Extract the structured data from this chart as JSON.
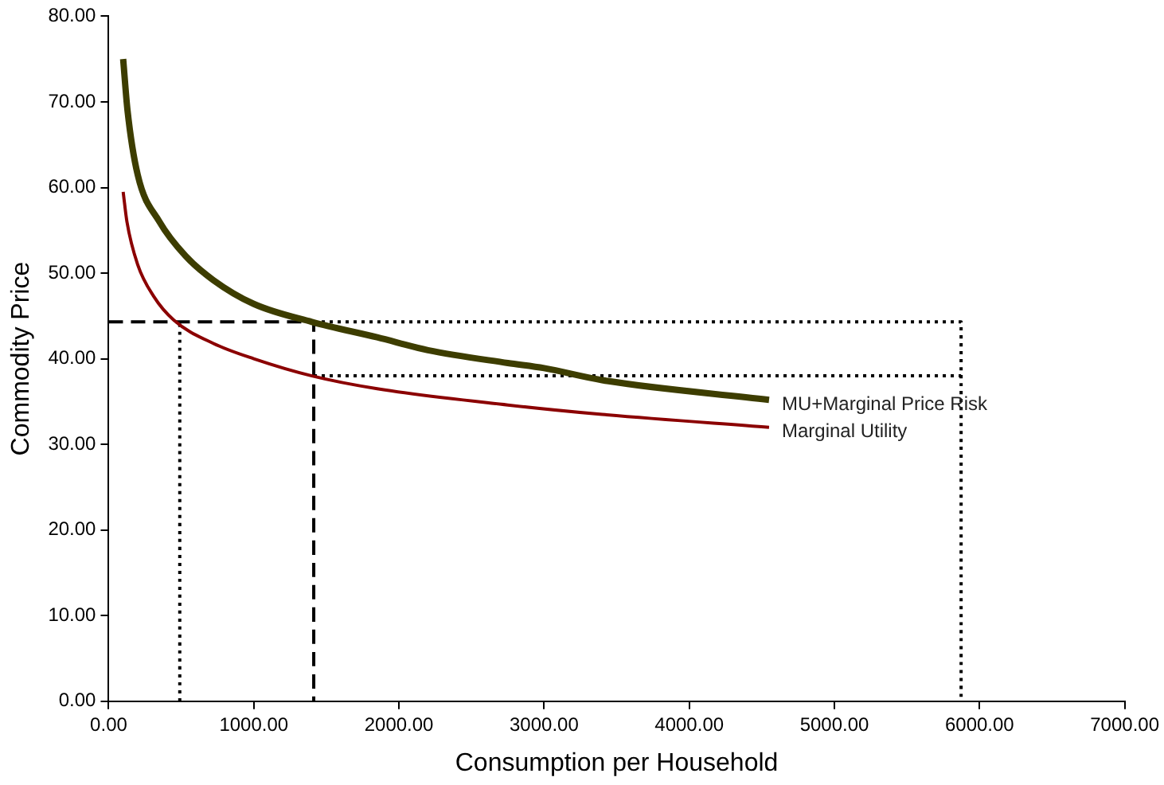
{
  "chart_data": {
    "type": "line",
    "xlabel": "Consumption per Household",
    "ylabel": "Commodity Price",
    "xlim": [
      0,
      7000
    ],
    "ylim": [
      0,
      80
    ],
    "xticks": [
      {
        "value": 0,
        "label": "0.00"
      },
      {
        "value": 1000,
        "label": "1000.00"
      },
      {
        "value": 2000,
        "label": "2000.00"
      },
      {
        "value": 3000,
        "label": "3000.00"
      },
      {
        "value": 4000,
        "label": "4000.00"
      },
      {
        "value": 5000,
        "label": "5000.00"
      },
      {
        "value": 6000,
        "label": "6000.00"
      },
      {
        "value": 7000,
        "label": "7000.00"
      }
    ],
    "yticks": [
      {
        "value": 0,
        "label": "0.00"
      },
      {
        "value": 10,
        "label": "10.00"
      },
      {
        "value": 20,
        "label": "20.00"
      },
      {
        "value": 30,
        "label": "30.00"
      },
      {
        "value": 40,
        "label": "40.00"
      },
      {
        "value": 50,
        "label": "50.00"
      },
      {
        "value": 60,
        "label": "60.00"
      },
      {
        "value": 70,
        "label": "70.00"
      },
      {
        "value": 80,
        "label": "80.00"
      }
    ],
    "grid": false,
    "legend": false,
    "marker": "none",
    "series": [
      {
        "name": "MU+Marginal Price Risk",
        "color": "#3d3d00",
        "x": [
          100,
          130,
          200,
          350,
          530,
          720,
          1000,
          1400,
          1850,
          2200,
          2750,
          3000,
          3400,
          4550
        ],
        "values": [
          75,
          69,
          61.5,
          56,
          52,
          49.2,
          46.4,
          44.3,
          42.5,
          41,
          39.5,
          38.9,
          37.5,
          35.2
        ]
      },
      {
        "name": "Marginal Utility",
        "color": "#8b0000",
        "x": [
          100,
          126,
          200,
          310,
          450,
          720,
          1000,
          1400,
          1850,
          2750,
          3400,
          4550
        ],
        "values": [
          59.5,
          56,
          51,
          47.3,
          44.5,
          41.8,
          40,
          38,
          36.5,
          34.6,
          33.5,
          32
        ]
      },
      {
        "color": "#000000",
        "line_style": "dashed",
        "x": [
          0,
          1413,
          1413
        ],
        "values": [
          44.3,
          44.3,
          0
        ]
      },
      {
        "color": "#000000",
        "line_style": "dotted",
        "x": [
          490,
          490
        ],
        "values": [
          0,
          44.3
        ]
      },
      {
        "color": "#000000",
        "line_style": "dotted",
        "x": [
          1413,
          5873,
          5873
        ],
        "values": [
          44.3,
          44.3,
          0
        ]
      },
      {
        "color": "#000000",
        "line_style": "dotted",
        "x": [
          1413,
          5873
        ],
        "values": [
          38,
          38
        ]
      }
    ]
  }
}
